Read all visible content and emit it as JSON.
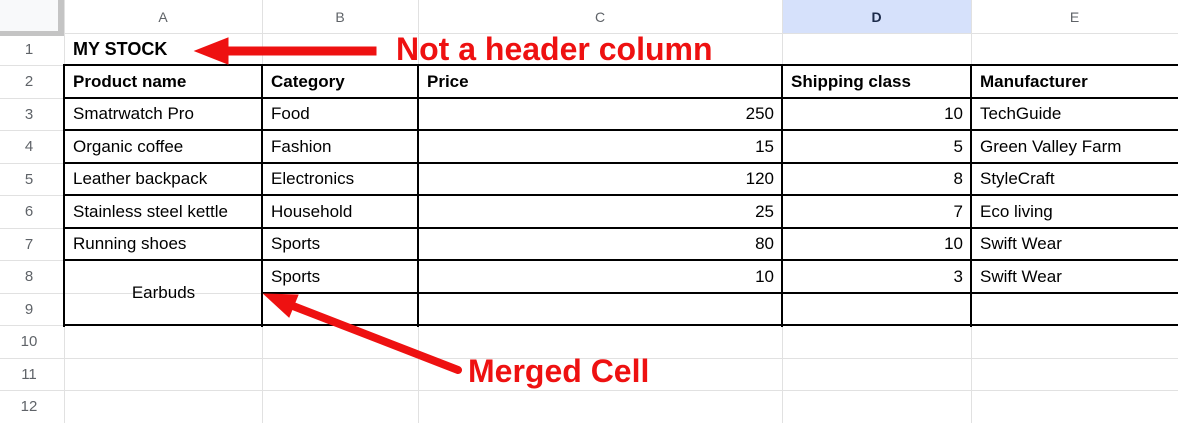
{
  "spreadsheet": {
    "columns": [
      {
        "label": "A",
        "selected": false
      },
      {
        "label": "B",
        "selected": false
      },
      {
        "label": "C",
        "selected": false
      },
      {
        "label": "D",
        "selected": true
      },
      {
        "label": "E",
        "selected": false
      }
    ],
    "row_numbers": [
      "1",
      "2",
      "3",
      "4",
      "5",
      "6",
      "7",
      "8",
      "9",
      "10",
      "11",
      "12"
    ],
    "cells": [
      {
        "row": 1,
        "col": "A",
        "text": "MY STOCK",
        "bold": true,
        "title": true
      },
      {
        "row": 2,
        "col": "A",
        "text": "Product name",
        "bold": true
      },
      {
        "row": 2,
        "col": "B",
        "text": "Category",
        "bold": true
      },
      {
        "row": 2,
        "col": "C",
        "text": "Price",
        "bold": true
      },
      {
        "row": 2,
        "col": "D",
        "text": "Shipping class",
        "bold": true
      },
      {
        "row": 2,
        "col": "E",
        "text": "Manufacturer",
        "bold": true
      },
      {
        "row": 3,
        "col": "A",
        "text": "Smatrwatch Pro"
      },
      {
        "row": 3,
        "col": "B",
        "text": "Food"
      },
      {
        "row": 3,
        "col": "C",
        "text": "250",
        "align": "right"
      },
      {
        "row": 3,
        "col": "D",
        "text": "10",
        "align": "right"
      },
      {
        "row": 3,
        "col": "E",
        "text": "TechGuide"
      },
      {
        "row": 4,
        "col": "A",
        "text": "Organic coffee"
      },
      {
        "row": 4,
        "col": "B",
        "text": "Fashion"
      },
      {
        "row": 4,
        "col": "C",
        "text": "15",
        "align": "right"
      },
      {
        "row": 4,
        "col": "D",
        "text": "5",
        "align": "right"
      },
      {
        "row": 4,
        "col": "E",
        "text": "Green Valley Farm"
      },
      {
        "row": 5,
        "col": "A",
        "text": "Leather backpack"
      },
      {
        "row": 5,
        "col": "B",
        "text": "Electronics"
      },
      {
        "row": 5,
        "col": "C",
        "text": "120",
        "align": "right"
      },
      {
        "row": 5,
        "col": "D",
        "text": "8",
        "align": "right"
      },
      {
        "row": 5,
        "col": "E",
        "text": "StyleCraft"
      },
      {
        "row": 6,
        "col": "A",
        "text": "Stainless steel kettle"
      },
      {
        "row": 6,
        "col": "B",
        "text": "Household"
      },
      {
        "row": 6,
        "col": "C",
        "text": "25",
        "align": "right"
      },
      {
        "row": 6,
        "col": "D",
        "text": "7",
        "align": "right"
      },
      {
        "row": 6,
        "col": "E",
        "text": "Eco living"
      },
      {
        "row": 7,
        "col": "A",
        "text": "Running shoes"
      },
      {
        "row": 7,
        "col": "B",
        "text": "Sports"
      },
      {
        "row": 7,
        "col": "C",
        "text": "80",
        "align": "right"
      },
      {
        "row": 7,
        "col": "D",
        "text": "10",
        "align": "right"
      },
      {
        "row": 7,
        "col": "E",
        "text": "Swift Wear"
      },
      {
        "row": 8,
        "col": "A",
        "text": "Earbuds",
        "align": "center",
        "merged_rows": 2
      },
      {
        "row": 8,
        "col": "B",
        "text": "Sports"
      },
      {
        "row": 8,
        "col": "C",
        "text": "10",
        "align": "right"
      },
      {
        "row": 8,
        "col": "D",
        "text": "3",
        "align": "right"
      },
      {
        "row": 8,
        "col": "E",
        "text": "Swift Wear"
      }
    ]
  },
  "annotations": {
    "accent_color": "#ee1111",
    "not_a_header": "Not a header column",
    "merged_cell": "Merged Cell"
  },
  "colors": {
    "selected_header_bg": "#d6e1fb",
    "selected_header_text": "#1c2b4a",
    "header_text": "#5f6368",
    "grid_line": "#e1e1e1",
    "table_border": "#000000"
  }
}
